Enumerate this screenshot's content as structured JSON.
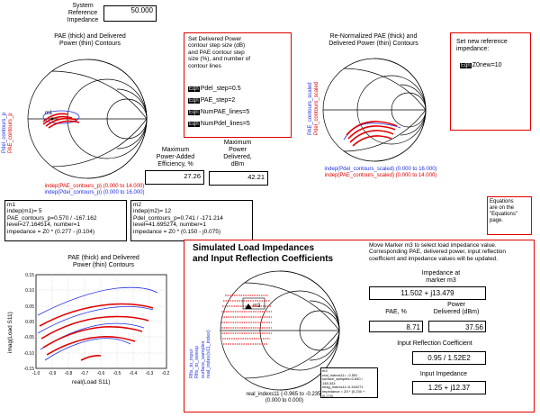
{
  "system_ref": {
    "label_lines": [
      "System",
      "Reference",
      "Impedance"
    ],
    "value": "50.000"
  },
  "smith1": {
    "title_lines": [
      "PAE (thick) and Delivered",
      "Power (thin) Contours"
    ],
    "side_lines": [
      "Pdel_contours_p",
      "PAE_contours_p"
    ],
    "legend_lines": [
      "indep(PAE_contours_p) (0.000 to 14.000)",
      "indep(Pdel_contours_p) (0.000 to 16.000)"
    ],
    "marker": "m1"
  },
  "settings": {
    "title_lines": [
      "Set Delivered Power",
      "contour step size (dB)",
      "and PAE contour step",
      "size (%), and number of",
      "contour lines"
    ],
    "eqn_tag": "Eqn",
    "eqns": [
      "Pdel_step=0.5",
      "PAE_step=2",
      "NumPAE_lines=5",
      "NumPdel_lines=5"
    ]
  },
  "smith2": {
    "title_lines": [
      "Re-Normalized PAE (thick) and",
      "Delivered Power (thin) Contours"
    ],
    "side_lines": [
      "PAE_contours_scaled",
      "Pdel_contours_scaled"
    ],
    "legend_lines": [
      "indep(Pdel_contours_scaled) (0.000 to 16.000)",
      "indep(PAE_contours_scaled) (0.000 to 14.000)"
    ]
  },
  "newref": {
    "title_lines": [
      "Set new reference",
      "impedance:"
    ],
    "eqn_tag": "Eqn",
    "eqn": "Z0new=10"
  },
  "max_pae": {
    "label_lines": [
      "Maximum",
      "Power-Added",
      "Efficiency, %"
    ],
    "value": "27.26"
  },
  "max_pdel": {
    "label_lines": [
      "Maximum",
      "Power",
      "Delivered,",
      "dBm"
    ],
    "value": "42.21"
  },
  "equations_note": {
    "lines": [
      "Equations",
      "are on the",
      "\"Equations\"",
      "page."
    ]
  },
  "m1_info": {
    "lines": [
      "m1",
      "indep(m1)=  5",
      "PAE_contours_p=0.570 / -167.162",
      "level=27.164514, number=1",
      "impedance = Z0 * (0.277 - j0.104)"
    ]
  },
  "m2_info": {
    "lines": [
      "m2",
      "indep(m2)=  12",
      "Pdel_contours_p=0.741 / -171.214",
      "level=41.695274, number=1",
      "impedance = Z0 * (0.150 - j0.075)"
    ]
  },
  "cart": {
    "title_lines": [
      "PAE (thick) and Delivered",
      "Power (thin) Contours"
    ],
    "xlabel": "real(Load S11)",
    "ylabel": "imag(Load S11)",
    "xticks": [
      "-1.0",
      "-0.9",
      "-0.8",
      "-0.7",
      "-0.6",
      "-0.5",
      "-0.4",
      "-0.3",
      "-0.2"
    ],
    "yticks": [
      "0.15",
      "0.10",
      "0.05",
      "0.00",
      "-0.05",
      "-0.10",
      "-0.15"
    ]
  },
  "sim": {
    "title_lines": [
      "Simulated Load Impedances",
      "and Input Reflection Coefficients"
    ],
    "desc": "Move Marker m3 to select load impedance value.  Corresponding PAE, delivered power, input reflection coefficient and impedance values will be updated.",
    "side_lines": [
      "Rfix_to_input",
      "Rfix_to_sweep",
      "surface_samples",
      "real_index(s11_index)"
    ],
    "marker": "m3",
    "legend_lines": [
      "real_indexs11 (-0.965 to -0.235)",
      "(0.000 to 0.000)"
    ],
    "mini_lines": [
      "m3",
      "real_indexs11= -0.551",
      "surface_samples=0.640 / 148.343",
      "imag_indexs11=0.340271",
      "impedance = Z0 * (0.230 + j0.270)"
    ],
    "imp_label_lines": [
      "Impedance at",
      "marker m3"
    ],
    "imp_value": "11.502 + j13.479",
    "pae_label": "PAE, %",
    "pae_value": "8.71",
    "pdel_label_lines": [
      "Power",
      "Delivered (dBm)"
    ],
    "pdel_value": "37.56",
    "refl_label": "Input Reflection Coefficient",
    "refl_value": "0.95 / 1.52E2",
    "inimp_label": "Input Impedance",
    "inimp_value": "1.25 + j12.37"
  }
}
